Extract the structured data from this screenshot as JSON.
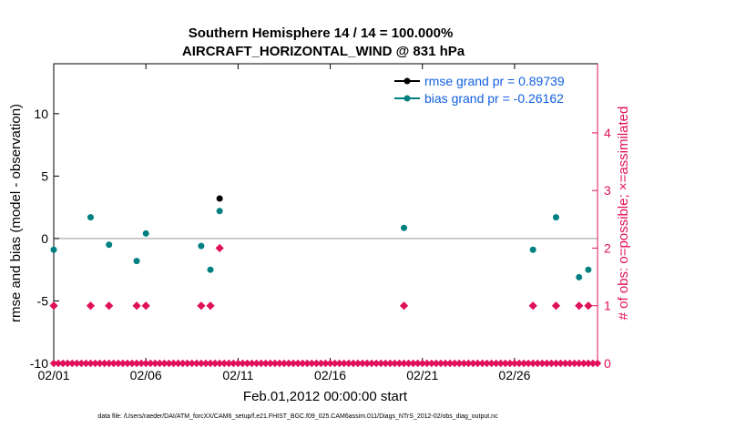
{
  "colors": {
    "rmse": "#000000",
    "bias": "#008080",
    "obs": "#e0105a",
    "legend_text": "#1060e0",
    "zero_line": "#bbbbbb",
    "frame": "#000000"
  },
  "chart_data": {
    "type": "scatter",
    "title_line1": "Southern Hemisphere 14 / 14 = 100.000%",
    "title_line2": "AIRCRAFT_HORIZONTAL_WIND @ 831 hPa",
    "xlabel": "Feb.01,2012 00:00:00 start",
    "ylabel_left": "rmse and bias (model - observation)",
    "ylabel_right": "# of obs: o=possible; ×=assimilated",
    "footnote": "data file: /Users/raeder/DAI/ATM_forcXX/CAM6_setup/f.e21.FHIST_BGC.f09_025.CAM6assim.011/Diags_NTrS_2012-02/obs_diag_output.nc",
    "xlim": [
      1,
      30.5
    ],
    "ylim_left": [
      -10,
      14
    ],
    "ylim_right": [
      0,
      5.2
    ],
    "x_ticks": [
      {
        "value": 1,
        "label": "02/01"
      },
      {
        "value": 6,
        "label": "02/06"
      },
      {
        "value": 11,
        "label": "02/11"
      },
      {
        "value": 16,
        "label": "02/16"
      },
      {
        "value": 21,
        "label": "02/21"
      },
      {
        "value": 26,
        "label": "02/26"
      }
    ],
    "y_ticks_left": [
      -10,
      -5,
      0,
      5,
      10
    ],
    "y_ticks_right": [
      0,
      1,
      2,
      3,
      4
    ],
    "legend": [
      {
        "name": "rmse grand pr = 0.89739",
        "series": "rmse"
      },
      {
        "name": "bias grand pr = -0.26162",
        "series": "bias"
      }
    ],
    "rmse_points": [
      {
        "x": 10.0,
        "y": 3.2
      }
    ],
    "bias_points": [
      {
        "x": 1.0,
        "y": -0.9
      },
      {
        "x": 3.0,
        "y": 1.7
      },
      {
        "x": 4.0,
        "y": -0.5
      },
      {
        "x": 5.5,
        "y": -1.8
      },
      {
        "x": 6.0,
        "y": 0.4
      },
      {
        "x": 9.0,
        "y": -0.6
      },
      {
        "x": 9.5,
        "y": -2.5
      },
      {
        "x": 10.0,
        "y": 2.2
      },
      {
        "x": 20.0,
        "y": 0.85
      },
      {
        "x": 27.0,
        "y": -0.9
      },
      {
        "x": 28.25,
        "y": 1.7
      },
      {
        "x": 29.5,
        "y": -3.1
      },
      {
        "x": 30.0,
        "y": -2.5
      }
    ],
    "obs_count_points": [
      {
        "x": 1.0,
        "y": 1
      },
      {
        "x": 3.0,
        "y": 1
      },
      {
        "x": 4.0,
        "y": 1
      },
      {
        "x": 5.5,
        "y": 1
      },
      {
        "x": 6.0,
        "y": 1
      },
      {
        "x": 9.0,
        "y": 1
      },
      {
        "x": 9.5,
        "y": 1
      },
      {
        "x": 10.0,
        "y": 2
      },
      {
        "x": 20.0,
        "y": 1
      },
      {
        "x": 27.0,
        "y": 1
      },
      {
        "x": 28.25,
        "y": 1
      },
      {
        "x": 29.5,
        "y": 1
      },
      {
        "x": 30.0,
        "y": 1
      }
    ],
    "zero_count_x": [
      1.0,
      1.25,
      1.5,
      1.75,
      2.0,
      2.25,
      2.5,
      2.75,
      3.0,
      3.25,
      3.5,
      3.75,
      4.0,
      4.25,
      4.5,
      4.75,
      5.0,
      5.25,
      5.5,
      5.75,
      6.0,
      6.25,
      6.5,
      6.75,
      7.0,
      7.25,
      7.5,
      7.75,
      8.0,
      8.25,
      8.5,
      8.75,
      9.0,
      9.25,
      9.5,
      9.75,
      10.0,
      10.25,
      10.5,
      10.75,
      11.0,
      11.25,
      11.5,
      11.75,
      12.0,
      12.25,
      12.5,
      12.75,
      13.0,
      13.25,
      13.5,
      13.75,
      14.0,
      14.25,
      14.5,
      14.75,
      15.0,
      15.25,
      15.5,
      15.75,
      16.0,
      16.25,
      16.5,
      16.75,
      17.0,
      17.25,
      17.5,
      17.75,
      18.0,
      18.25,
      18.5,
      18.75,
      19.0,
      19.25,
      19.5,
      19.75,
      20.0,
      20.25,
      20.5,
      20.75,
      21.0,
      21.25,
      21.5,
      21.75,
      22.0,
      22.25,
      22.5,
      22.75,
      23.0,
      23.25,
      23.5,
      23.75,
      24.0,
      24.25,
      24.5,
      24.75,
      25.0,
      25.25,
      25.5,
      25.75,
      26.0,
      26.25,
      26.5,
      26.75,
      27.0,
      27.25,
      27.5,
      27.75,
      28.0,
      28.25,
      28.5,
      28.75,
      29.0,
      29.25,
      29.5,
      29.75,
      30.0,
      30.25,
      30.5
    ]
  }
}
